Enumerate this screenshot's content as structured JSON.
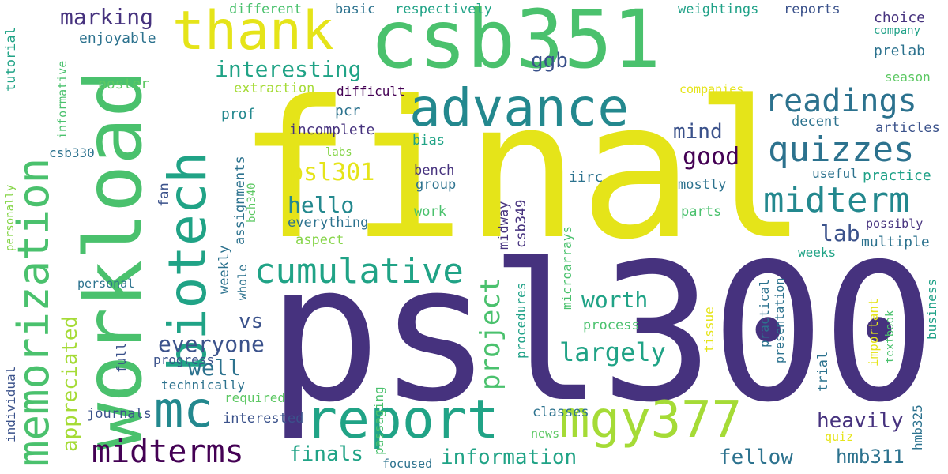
{
  "palette": {
    "yellow": "#e5e419",
    "lime": "#a5db36",
    "green": "#4ac16d",
    "green2": "#5cc863",
    "teal": "#20a386",
    "teal2": "#1fa187",
    "cyan": "#23888e",
    "blue": "#2c728e",
    "slate": "#3b528b",
    "indigo": "#46327e",
    "purple": "#440154",
    "light": "#86d549"
  },
  "words": [
    {
      "id": "final",
      "text": "final"
    },
    {
      "id": "psl300",
      "text": "psl300"
    },
    {
      "id": "workload",
      "text": "workload"
    },
    {
      "id": "csb351",
      "text": "csb351"
    },
    {
      "id": "biotech",
      "text": "biotech"
    },
    {
      "id": "memorization",
      "text": "memorization"
    },
    {
      "id": "advance",
      "text": "advance"
    },
    {
      "id": "thank",
      "text": "thank"
    },
    {
      "id": "report",
      "text": "report"
    },
    {
      "id": "mgy377",
      "text": "mgy377"
    },
    {
      "id": "mc",
      "text": "mc"
    },
    {
      "id": "cumulative",
      "text": "cumulative"
    },
    {
      "id": "midterm",
      "text": "midterm"
    },
    {
      "id": "quizzes",
      "text": "quizzes"
    },
    {
      "id": "readings",
      "text": "readings"
    },
    {
      "id": "midterms",
      "text": "midterms"
    },
    {
      "id": "marking",
      "text": "marking"
    },
    {
      "id": "interesting",
      "text": "interesting"
    },
    {
      "id": "ggb",
      "text": "ggb"
    },
    {
      "id": "psl301",
      "text": "psl301"
    },
    {
      "id": "hello",
      "text": "hello"
    },
    {
      "id": "good",
      "text": "good"
    },
    {
      "id": "mind",
      "text": "mind"
    },
    {
      "id": "lab",
      "text": "lab"
    },
    {
      "id": "project",
      "text": "project"
    },
    {
      "id": "worth",
      "text": "worth"
    },
    {
      "id": "largely",
      "text": "largely"
    },
    {
      "id": "everyone",
      "text": "everyone"
    },
    {
      "id": "well",
      "text": "well"
    },
    {
      "id": "vs",
      "text": "vs"
    },
    {
      "id": "appreciated",
      "text": "appreciated"
    },
    {
      "id": "heavily",
      "text": "heavily"
    },
    {
      "id": "finals",
      "text": "finals"
    },
    {
      "id": "information",
      "text": "information"
    },
    {
      "id": "fellow",
      "text": "fellow"
    },
    {
      "id": "hmb311",
      "text": "hmb311"
    },
    {
      "id": "tutorial",
      "text": "tutorial"
    },
    {
      "id": "informative",
      "text": "informative"
    },
    {
      "id": "personally",
      "text": "personally"
    },
    {
      "id": "individual",
      "text": "individual"
    },
    {
      "id": "enjoyable",
      "text": "enjoyable"
    },
    {
      "id": "poster",
      "text": "poster"
    },
    {
      "id": "extraction",
      "text": "extraction"
    },
    {
      "id": "difficult",
      "text": "difficult"
    },
    {
      "id": "different",
      "text": "different"
    },
    {
      "id": "basic",
      "text": "basic"
    },
    {
      "id": "respectively",
      "text": "respectively"
    },
    {
      "id": "weightings",
      "text": "weightings"
    },
    {
      "id": "reports",
      "text": "reports"
    },
    {
      "id": "choice",
      "text": "choice"
    },
    {
      "id": "company",
      "text": "company"
    },
    {
      "id": "prelab",
      "text": "prelab"
    },
    {
      "id": "season",
      "text": "season"
    },
    {
      "id": "companies",
      "text": "companies"
    },
    {
      "id": "decent",
      "text": "decent"
    },
    {
      "id": "articles",
      "text": "articles"
    },
    {
      "id": "useful",
      "text": "useful"
    },
    {
      "id": "practice",
      "text": "practice"
    },
    {
      "id": "mostly",
      "text": "mostly"
    },
    {
      "id": "parts",
      "text": "parts"
    },
    {
      "id": "possibly",
      "text": "possibly"
    },
    {
      "id": "multiple",
      "text": "multiple"
    },
    {
      "id": "weeks",
      "text": "weeks"
    },
    {
      "id": "prof",
      "text": "prof"
    },
    {
      "id": "pcr",
      "text": "pcr"
    },
    {
      "id": "incomplete",
      "text": "incomplete"
    },
    {
      "id": "csb330",
      "text": "csb330"
    },
    {
      "id": "labs",
      "text": "labs"
    },
    {
      "id": "bias",
      "text": "bias"
    },
    {
      "id": "bench",
      "text": "bench"
    },
    {
      "id": "group",
      "text": "group"
    },
    {
      "id": "iirc",
      "text": "iirc"
    },
    {
      "id": "work",
      "text": "work"
    },
    {
      "id": "everything",
      "text": "everything"
    },
    {
      "id": "aspect",
      "text": "aspect"
    },
    {
      "id": "personal",
      "text": "personal"
    },
    {
      "id": "process",
      "text": "process"
    },
    {
      "id": "progress",
      "text": "progress"
    },
    {
      "id": "technically",
      "text": "technically"
    },
    {
      "id": "required",
      "text": "required"
    },
    {
      "id": "journals",
      "text": "journals"
    },
    {
      "id": "interested",
      "text": "interested"
    },
    {
      "id": "classes",
      "text": "classes"
    },
    {
      "id": "news",
      "text": "news"
    },
    {
      "id": "focused",
      "text": "focused"
    },
    {
      "id": "quiz",
      "text": "quiz"
    },
    {
      "id": "fan",
      "text": "fan"
    },
    {
      "id": "assignments",
      "text": "assignments"
    },
    {
      "id": "bch340",
      "text": "bch340"
    },
    {
      "id": "weekly",
      "text": "weekly"
    },
    {
      "id": "whole",
      "text": "whole"
    },
    {
      "id": "full",
      "text": "full"
    },
    {
      "id": "midway",
      "text": "midway"
    },
    {
      "id": "csb349",
      "text": "csb349"
    },
    {
      "id": "microarrays",
      "text": "microarrays"
    },
    {
      "id": "passaging",
      "text": "passaging"
    },
    {
      "id": "procedures",
      "text": "procedures"
    },
    {
      "id": "tissue",
      "text": "tissue"
    },
    {
      "id": "practical",
      "text": "practical"
    },
    {
      "id": "presentation",
      "text": "presentation"
    },
    {
      "id": "trial",
      "text": "trial"
    },
    {
      "id": "important",
      "text": "important"
    },
    {
      "id": "textbook",
      "text": "textbook"
    },
    {
      "id": "business",
      "text": "business"
    },
    {
      "id": "hmb325",
      "text": "hmb325"
    }
  ]
}
